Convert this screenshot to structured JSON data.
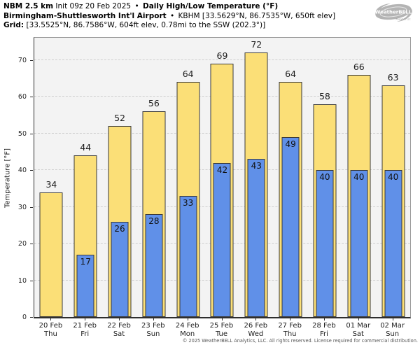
{
  "header": {
    "model": "NBM 2.5 km",
    "init": "Init 09z 20 Feb 2025",
    "sep": "•",
    "product": "Daily High/Low Temperature (°F)",
    "station_name": "Birmingham-Shuttlesworth Int'l Airport",
    "station_info": "KBHM [33.5629°N, 86.7535°W, 650ft elev]",
    "grid_label": "Grid:",
    "grid_info": "[33.5525°N, 86.7586°W, 604ft elev, 0.78mi to the SSW (202.3°)]"
  },
  "logo": {
    "brand": "WeatherBELL",
    "sub": "Analytics LLC"
  },
  "chart_data": {
    "type": "bar",
    "title": "NBM 2.5 km Daily High/Low Temperature (°F) — Birmingham-Shuttlesworth Int'l Airport (KBHM)",
    "xlabel": "",
    "ylabel": "Temperature [°F]",
    "ylim": [
      0,
      76
    ],
    "yticks": [
      0,
      10,
      20,
      30,
      40,
      50,
      60,
      70
    ],
    "grid": true,
    "legend": "none",
    "categories": [
      {
        "date": "20 Feb",
        "day": "Thu"
      },
      {
        "date": "21 Feb",
        "day": "Fri"
      },
      {
        "date": "22 Feb",
        "day": "Sat"
      },
      {
        "date": "23 Feb",
        "day": "Sun"
      },
      {
        "date": "24 Feb",
        "day": "Mon"
      },
      {
        "date": "25 Feb",
        "day": "Tue"
      },
      {
        "date": "26 Feb",
        "day": "Wed"
      },
      {
        "date": "27 Feb",
        "day": "Thu"
      },
      {
        "date": "28 Feb",
        "day": "Fri"
      },
      {
        "date": "01 Mar",
        "day": "Sat"
      },
      {
        "date": "02 Mar",
        "day": "Sun"
      }
    ],
    "series": [
      {
        "name": "Daily High",
        "color": "#FBDF77",
        "values": [
          34,
          44,
          52,
          56,
          64,
          69,
          72,
          64,
          58,
          66,
          63
        ]
      },
      {
        "name": "Daily Low",
        "color": "#6090E8",
        "values": [
          null,
          17,
          26,
          28,
          33,
          42,
          43,
          49,
          40,
          40,
          40
        ]
      }
    ],
    "colors": {
      "high": "#FBDF77",
      "low": "#6090E8",
      "bar_border": "#3A3A3A",
      "plot_bg": "#F3F3F3",
      "grid": "#CFCFCF",
      "spine": "#2E2E2E"
    }
  },
  "footer": "© 2025 WeatherBELL Analytics, LLC. All rights reserved. License required for commercial distribution."
}
